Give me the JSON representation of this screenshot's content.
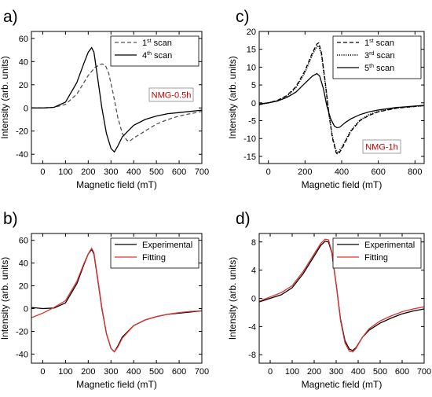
{
  "chart_data": [
    {
      "panel": "a)",
      "type": "line",
      "xlabel": "Magnetic field (mT)",
      "ylabel": "Intensity (arb. units)",
      "xlim": [
        -50,
        700
      ],
      "ylim": [
        -48,
        66
      ],
      "xticks": [
        0,
        100,
        200,
        300,
        400,
        500,
        600,
        700
      ],
      "yticks": [
        -40,
        -20,
        0,
        20,
        40,
        60
      ],
      "annotation": {
        "text": "NMG-0.5h",
        "color": "#c00000"
      },
      "legend": {
        "placement": "top-right"
      },
      "series": [
        {
          "name": "1st scan",
          "name_base": "1",
          "name_sup": "st",
          "name_rest": " scan",
          "style": "dashed",
          "color": "#555555",
          "x": [
            -50,
            0,
            50,
            100,
            150,
            200,
            230,
            260,
            275,
            290,
            310,
            330,
            350,
            370,
            380,
            400,
            450,
            500,
            550,
            600,
            650,
            700
          ],
          "y": [
            0,
            0,
            0.5,
            3,
            12,
            28,
            35,
            38,
            37,
            30,
            12,
            -8,
            -22,
            -28,
            -29,
            -26,
            -20,
            -14,
            -10,
            -7,
            -5,
            -3
          ]
        },
        {
          "name": "4th scan",
          "name_base": "4",
          "name_sup": "th",
          "name_rest": " scan",
          "style": "solid",
          "color": "#000000",
          "x": [
            -50,
            0,
            50,
            100,
            150,
            180,
            200,
            215,
            225,
            240,
            260,
            280,
            300,
            315,
            330,
            350,
            400,
            450,
            500,
            550,
            600,
            650,
            700
          ],
          "y": [
            0,
            0,
            0.5,
            5,
            22,
            38,
            48,
            52,
            48,
            28,
            0,
            -22,
            -35,
            -38,
            -33,
            -25,
            -15,
            -10,
            -7,
            -5,
            -4,
            -3,
            -2
          ]
        }
      ]
    },
    {
      "panel": "c)",
      "type": "line",
      "xlabel": "Magnetic field (mT)",
      "ylabel": "Intensity (arb. units)",
      "xlim": [
        -50,
        850
      ],
      "ylim": [
        -17,
        20
      ],
      "xticks": [
        0,
        200,
        400,
        600,
        800
      ],
      "yticks": [
        -15,
        -10,
        -5,
        0,
        5,
        10,
        15,
        20
      ],
      "annotation": {
        "text": "NMG-1h",
        "color": "#c00000"
      },
      "legend": {
        "placement": "top-right"
      },
      "series": [
        {
          "name": "1st scan",
          "name_base": "1",
          "name_sup": "st",
          "name_rest": " scan",
          "style": "dashed",
          "color": "#000000",
          "x": [
            -50,
            0,
            50,
            100,
            150,
            200,
            240,
            265,
            275,
            290,
            310,
            330,
            350,
            370,
            380,
            400,
            450,
            500,
            550,
            600,
            700,
            800,
            850
          ],
          "y": [
            -0.5,
            0,
            0.7,
            2,
            4.5,
            9,
            14,
            16.5,
            16.8,
            14,
            6,
            -3,
            -10,
            -14,
            -14.5,
            -13,
            -8,
            -5,
            -3.5,
            -2.5,
            -1.5,
            -1,
            -0.8
          ]
        },
        {
          "name": "3rd scan",
          "name_base": "3",
          "name_sup": "rd",
          "name_rest": " scan",
          "style": "dotted",
          "color": "#000000",
          "x": [
            -50,
            0,
            50,
            100,
            150,
            200,
            240,
            265,
            275,
            290,
            310,
            330,
            350,
            370,
            380,
            400,
            450,
            500,
            550,
            600,
            700,
            800,
            850
          ],
          "y": [
            -0.5,
            0,
            0.6,
            1.8,
            4.2,
            8.5,
            13.5,
            15.8,
            16,
            13.5,
            5.5,
            -3,
            -9.5,
            -13.5,
            -14,
            -12.5,
            -7.8,
            -4.8,
            -3.3,
            -2.4,
            -1.4,
            -1,
            -0.8
          ]
        },
        {
          "name": "5th scan",
          "name_base": "5",
          "name_sup": "th",
          "name_rest": " scan",
          "style": "solid",
          "color": "#000000",
          "x": [
            -50,
            0,
            50,
            100,
            150,
            200,
            240,
            265,
            280,
            300,
            320,
            340,
            360,
            375,
            390,
            420,
            450,
            500,
            550,
            600,
            700,
            800,
            850
          ],
          "y": [
            -0.3,
            0,
            0.5,
            1.5,
            3,
            5.5,
            7.5,
            8.2,
            7.5,
            4,
            -1,
            -4.5,
            -6.5,
            -7,
            -6.8,
            -5.5,
            -4.5,
            -3.3,
            -2.5,
            -2,
            -1.3,
            -0.9,
            -0.7
          ]
        }
      ]
    },
    {
      "panel": "b)",
      "type": "line",
      "xlabel": "Magnetic field (mT)",
      "ylabel": "Intensity (arb. units)",
      "xlim": [
        -50,
        700
      ],
      "ylim": [
        -48,
        66
      ],
      "xticks": [
        0,
        100,
        200,
        300,
        400,
        500,
        600,
        700
      ],
      "yticks": [
        -40,
        -20,
        0,
        20,
        40,
        60
      ],
      "legend": {
        "placement": "top-right"
      },
      "series": [
        {
          "name": "Experimental",
          "style": "solid",
          "color": "#000000",
          "x": [
            -50,
            0,
            50,
            100,
            150,
            180,
            200,
            215,
            225,
            240,
            260,
            280,
            300,
            315,
            330,
            350,
            400,
            450,
            500,
            550,
            600,
            650,
            700
          ],
          "y": [
            1,
            0,
            0.5,
            5,
            22,
            38,
            48,
            52,
            48,
            28,
            0,
            -22,
            -35,
            -38,
            -33,
            -25,
            -15,
            -10,
            -7,
            -5,
            -4,
            -3,
            -2
          ]
        },
        {
          "name": "Fitting",
          "style": "solid",
          "color": "#e03030",
          "x": [
            -50,
            0,
            50,
            100,
            150,
            180,
            200,
            215,
            225,
            240,
            260,
            280,
            300,
            315,
            330,
            350,
            400,
            450,
            500,
            550,
            600,
            650,
            700
          ],
          "y": [
            -8,
            -4,
            1,
            7,
            24,
            39,
            48,
            53,
            49,
            29,
            1,
            -22,
            -35,
            -38,
            -34,
            -26,
            -15,
            -10,
            -7,
            -5,
            -3.5,
            -2.5,
            -2
          ]
        }
      ]
    },
    {
      "panel": "d)",
      "type": "line",
      "xlabel": "Magnetic field (mT)",
      "ylabel": "Intensity (arb. units)",
      "xlim": [
        -50,
        700
      ],
      "ylim": [
        -9.2,
        9.2
      ],
      "xticks": [
        0,
        100,
        200,
        300,
        400,
        500,
        600,
        700
      ],
      "yticks": [
        -8,
        -4,
        0,
        4,
        8
      ],
      "legend": {
        "placement": "top-right"
      },
      "series": [
        {
          "name": "Experimental",
          "style": "solid",
          "color": "#000000",
          "x": [
            -50,
            0,
            50,
            100,
            150,
            200,
            230,
            250,
            265,
            280,
            300,
            320,
            340,
            360,
            375,
            390,
            420,
            450,
            500,
            550,
            600,
            650,
            700
          ],
          "y": [
            -0.5,
            0,
            0.5,
            1.5,
            3.5,
            6,
            7.5,
            8.1,
            8,
            6.5,
            2,
            -3,
            -6,
            -7.2,
            -7.4,
            -7,
            -5.5,
            -4.5,
            -3.5,
            -2.8,
            -2.2,
            -1.8,
            -1.5
          ]
        },
        {
          "name": "Fitting",
          "style": "solid",
          "color": "#e03030",
          "x": [
            -50,
            0,
            50,
            100,
            150,
            200,
            230,
            250,
            265,
            280,
            300,
            320,
            340,
            360,
            375,
            390,
            420,
            450,
            500,
            550,
            600,
            650,
            700
          ],
          "y": [
            -0.4,
            0.2,
            0.8,
            1.8,
            3.8,
            6.3,
            7.8,
            8.4,
            8.3,
            6.6,
            2,
            -3.2,
            -6.3,
            -7.5,
            -7.6,
            -7.1,
            -5.5,
            -4.3,
            -3.2,
            -2.5,
            -1.9,
            -1.5,
            -1.2
          ]
        }
      ]
    }
  ]
}
